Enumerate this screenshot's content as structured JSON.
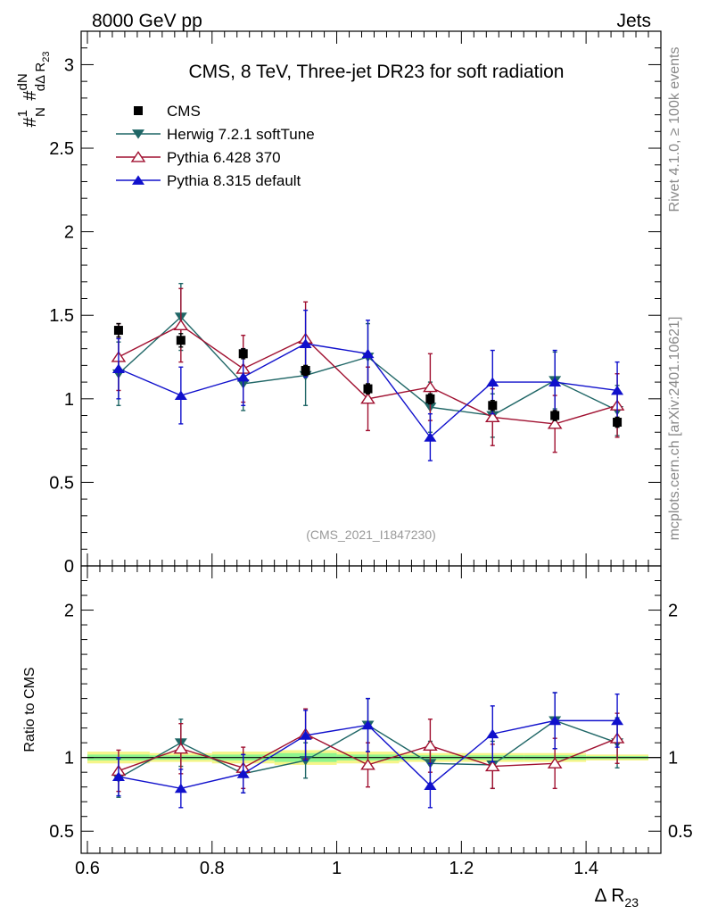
{
  "header": {
    "energy_label": "8000 GeV pp",
    "process_label": "Jets",
    "side_rivet": "Rivet 4.1.0, ≥ 100k events",
    "side_mcplots": "mcplots.cern.ch [arXiv:2401.10621]",
    "analysis_id": "(CMS_2021_I1847230)"
  },
  "colors": {
    "cms": "#000000",
    "herwig": "#1f6666",
    "pythia6": "#a01030",
    "pythia8": "#1010cc",
    "band_yellow": "#f5f58a",
    "band_green": "#8ef58e"
  },
  "chart_data": {
    "type": "scatter",
    "title": "CMS, 8 TeV, Three-jet DR23 for soft radiation",
    "xlabel": "Δ R",
    "xlabel_sub": "23",
    "ylabel_main": "#frac{1}{N} #frac{dN}{dΔ R_{23}}",
    "ylabel_ratio": "Ratio to CMS",
    "xlim": [
      0.59,
      1.52
    ],
    "ylim_main": [
      0,
      3.2
    ],
    "ylim_ratio": [
      0.35,
      2.3
    ],
    "xticks": [
      "0.6",
      "0.8",
      "1",
      "1.2",
      "1.4"
    ],
    "xtick_values": [
      0.6,
      0.8,
      1.0,
      1.2,
      1.4
    ],
    "yticks_main": [
      "0",
      "0.5",
      "1",
      "1.5",
      "2",
      "2.5",
      "3"
    ],
    "ytick_values_main": [
      0,
      0.5,
      1.0,
      1.5,
      2.0,
      2.5,
      3.0
    ],
    "yticks_ratio": [
      "0.5",
      "1",
      "2"
    ],
    "ytick_values_ratio": [
      0.5,
      1.0,
      2.0
    ],
    "x": [
      0.65,
      0.75,
      0.85,
      0.95,
      1.05,
      1.15,
      1.25,
      1.35,
      1.45
    ],
    "bin_edges": [
      0.6,
      0.7,
      0.8,
      0.9,
      1.0,
      1.1,
      1.2,
      1.3,
      1.4,
      1.5
    ],
    "series": [
      {
        "name": "CMS",
        "key": "cms",
        "marker": "square",
        "values": [
          1.41,
          1.35,
          1.27,
          1.17,
          1.06,
          1.0,
          0.96,
          0.9,
          0.86
        ],
        "errors": [
          0.04,
          0.04,
          0.03,
          0.03,
          0.03,
          0.03,
          0.03,
          0.03,
          0.03
        ]
      },
      {
        "name": "Herwig 7.2.1 softTune",
        "key": "herwig",
        "marker": "triangle-down",
        "values": [
          1.15,
          1.49,
          1.09,
          1.14,
          1.25,
          0.95,
          0.9,
          1.11,
          0.93
        ],
        "errors": [
          0.19,
          0.2,
          0.16,
          0.18,
          0.2,
          0.15,
          0.13,
          0.17,
          0.15
        ],
        "ratio": [
          0.86,
          1.1,
          0.89,
          0.98,
          1.22,
          0.96,
          0.95,
          1.25,
          1.1
        ],
        "ratio_errors": [
          0.13,
          0.16,
          0.13,
          0.12,
          0.18,
          0.15,
          0.16,
          0.19,
          0.17
        ]
      },
      {
        "name": "Pythia 6.428 370",
        "key": "pythia6",
        "marker": "triangle-open",
        "values": [
          1.25,
          1.44,
          1.18,
          1.36,
          1.0,
          1.07,
          0.89,
          0.85,
          0.96
        ],
        "errors": [
          0.2,
          0.22,
          0.2,
          0.22,
          0.19,
          0.2,
          0.17,
          0.17,
          0.19
        ],
        "ratio": [
          0.91,
          1.06,
          0.93,
          1.16,
          0.95,
          1.08,
          0.94,
          0.96,
          1.13
        ],
        "ratio_errors": [
          0.14,
          0.17,
          0.14,
          0.17,
          0.15,
          0.18,
          0.15,
          0.17,
          0.17
        ]
      },
      {
        "name": "Pythia 8.315 default",
        "key": "pythia8",
        "marker": "triangle-up",
        "values": [
          1.18,
          1.02,
          1.13,
          1.33,
          1.27,
          0.77,
          1.1,
          1.1,
          1.05
        ],
        "errors": [
          0.18,
          0.17,
          0.17,
          0.2,
          0.2,
          0.14,
          0.19,
          0.19,
          0.17
        ],
        "ratio": [
          0.87,
          0.79,
          0.89,
          1.15,
          1.22,
          0.81,
          1.16,
          1.25,
          1.25
        ],
        "ratio_errors": [
          0.13,
          0.13,
          0.13,
          0.17,
          0.18,
          0.15,
          0.19,
          0.19,
          0.18
        ]
      }
    ],
    "ratio_band": {
      "yellow_half_width": [
        0.04,
        0.03,
        0.04,
        0.05,
        0.04,
        0.03,
        0.03,
        0.03,
        0.02
      ],
      "green_half_width": [
        0.02,
        0.015,
        0.02,
        0.03,
        0.02,
        0.015,
        0.015,
        0.015,
        0.01
      ]
    }
  }
}
